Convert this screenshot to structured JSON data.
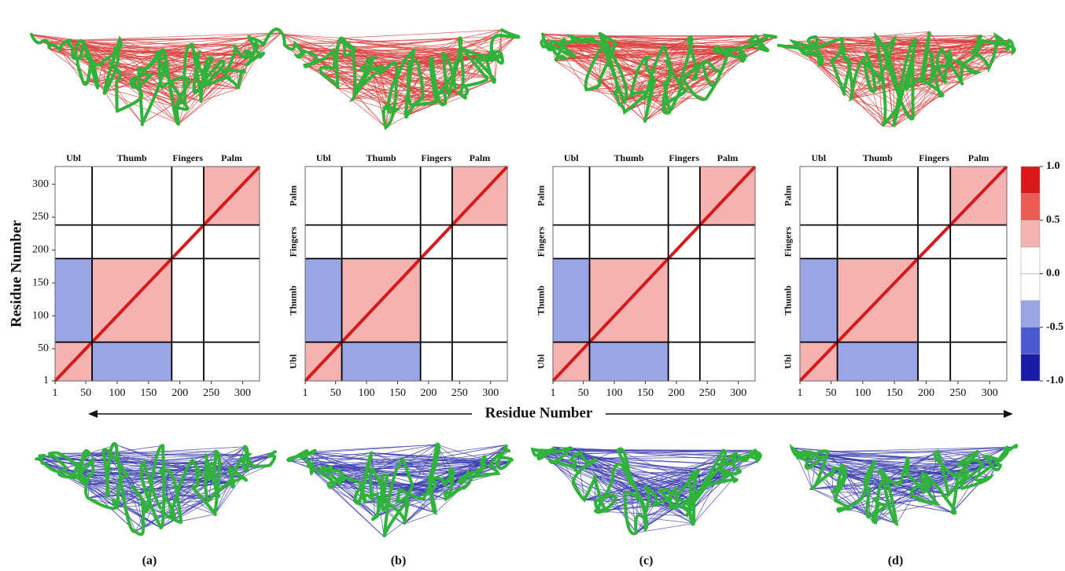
{
  "chart_data": [
    {
      "type": "heatmap",
      "label": "(a)",
      "ylabel": "Residue Number",
      "domains": [
        "Ubl",
        "Thumb",
        "Fingers",
        "Palm"
      ],
      "boundaries": [
        1,
        60,
        187,
        238,
        327
      ],
      "xlim": [
        1,
        327
      ],
      "ylim": [
        1,
        327
      ],
      "xticks": [
        1,
        50,
        100,
        150,
        200,
        250,
        300
      ],
      "yticks": [
        1,
        50,
        100,
        150,
        200,
        250,
        300
      ],
      "matrix": [
        [
          0.3,
          -0.3,
          -0.1,
          -0.15
        ],
        [
          -0.3,
          0.35,
          -0.1,
          0.05
        ],
        [
          -0.1,
          -0.1,
          0.2,
          0.1
        ],
        [
          -0.15,
          0.05,
          0.1,
          0.3
        ]
      ]
    },
    {
      "type": "heatmap",
      "label": "(b)",
      "domains": [
        "Ubl",
        "Thumb",
        "Fingers",
        "Palm"
      ],
      "boundaries": [
        1,
        60,
        187,
        238,
        327
      ],
      "xlim": [
        1,
        327
      ],
      "ylim": [
        1,
        327
      ],
      "xticks": [
        1,
        50,
        100,
        150,
        200,
        250,
        300
      ],
      "matrix": [
        [
          0.3,
          -0.35,
          -0.15,
          -0.2
        ],
        [
          -0.35,
          0.3,
          -0.1,
          -0.1
        ],
        [
          -0.15,
          -0.1,
          0.2,
          0.05
        ],
        [
          -0.2,
          -0.1,
          0.05,
          0.3
        ]
      ]
    },
    {
      "type": "heatmap",
      "label": "(c)",
      "domains": [
        "Ubl",
        "Thumb",
        "Fingers",
        "Palm"
      ],
      "boundaries": [
        1,
        60,
        187,
        238,
        327
      ],
      "xlim": [
        1,
        327
      ],
      "ylim": [
        1,
        327
      ],
      "xticks": [
        1,
        50,
        100,
        150,
        200,
        250,
        300
      ],
      "matrix": [
        [
          0.3,
          -0.4,
          -0.2,
          -0.15
        ],
        [
          -0.4,
          0.3,
          -0.1,
          -0.05
        ],
        [
          -0.2,
          -0.1,
          0.15,
          0.05
        ],
        [
          -0.15,
          -0.05,
          0.05,
          0.25
        ]
      ]
    },
    {
      "type": "heatmap",
      "label": "(d)",
      "domains": [
        "Ubl",
        "Thumb",
        "Fingers",
        "Palm"
      ],
      "boundaries": [
        1,
        60,
        187,
        238,
        327
      ],
      "xlim": [
        1,
        327
      ],
      "ylim": [
        1,
        327
      ],
      "xticks": [
        1,
        50,
        100,
        150,
        200,
        250,
        300
      ],
      "matrix": [
        [
          0.3,
          -0.45,
          -0.2,
          -0.2
        ],
        [
          -0.45,
          0.3,
          -0.1,
          0.05
        ],
        [
          -0.2,
          -0.1,
          0.15,
          0.05
        ],
        [
          -0.2,
          0.05,
          0.05,
          0.3
        ]
      ]
    }
  ],
  "figure": {
    "xlabel": "Residue Number",
    "colorbar": {
      "lim": [
        -1,
        1
      ],
      "colors": [
        "#1a1aa8",
        "#4a5ad0",
        "#9aa5e8",
        "#ffffff",
        "#ffffff",
        "#f4b3b0",
        "#ec5a55",
        "#d7191c"
      ],
      "ticks": [
        {
          "value": 1,
          "label": "1.0"
        },
        0.5,
        {
          "value": 0,
          "label": "0.0"
        },
        -0.5,
        {
          "value": -1,
          "label": "-1.0"
        }
      ]
    }
  }
}
